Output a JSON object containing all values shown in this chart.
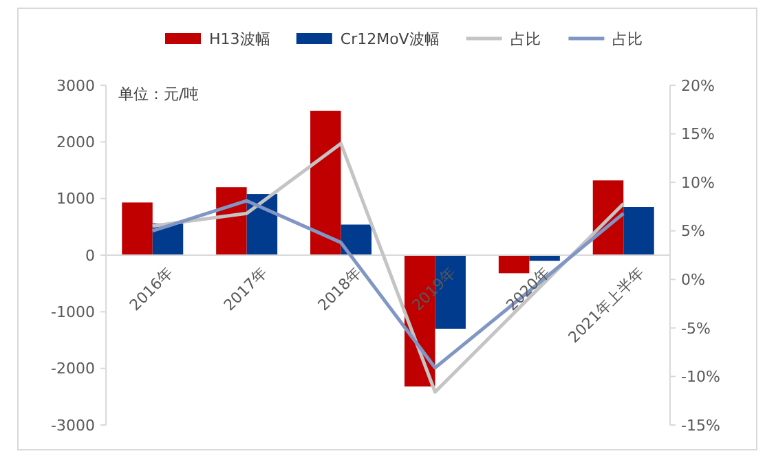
{
  "chart_data": {
    "type": "bar",
    "categories": [
      "2016年",
      "2017年",
      "2018年",
      "2019年",
      "2020年",
      "2021年上半年"
    ],
    "series": [
      {
        "name": "H13波幅",
        "color": "#c00000",
        "values": [
          930,
          1200,
          2550,
          -2320,
          -320,
          1320
        ]
      },
      {
        "name": "Cr12MoV波幅",
        "color": "#003b8e",
        "values": [
          560,
          1080,
          540,
          -1300,
          -100,
          850
        ]
      },
      {
        "name": "占比",
        "type": "line",
        "axis": "y2",
        "color": "#c4c4c4",
        "values": [
          5.5,
          6.8,
          14.0,
          -11.6,
          -1.9,
          7.8
        ]
      },
      {
        "name": "占比",
        "type": "line",
        "axis": "y2",
        "color": "#8096c4",
        "values": [
          5.0,
          8.1,
          3.8,
          -9.1,
          -1.2,
          6.8
        ]
      }
    ],
    "ylim": [
      -3000,
      3000
    ],
    "yticks": [
      -3000,
      -2000,
      -1000,
      0,
      1000,
      2000,
      3000
    ],
    "y2lim": [
      -15,
      20
    ],
    "y2ticks": [
      {
        "value": -15,
        "label": "-15%"
      },
      {
        "value": -10,
        "label": "-10%"
      },
      {
        "value": -5,
        "label": "-5%"
      },
      {
        "value": 0,
        "label": "0%"
      },
      {
        "value": 5,
        "label": "5%"
      },
      {
        "value": 10,
        "label": "10%"
      },
      {
        "value": 15,
        "label": "15%"
      },
      {
        "value": 20,
        "label": "20%"
      }
    ],
    "annotations": [
      "单位：元/吨"
    ],
    "legend": "top",
    "grid": false,
    "marker": "none",
    "line_style": "solid"
  }
}
